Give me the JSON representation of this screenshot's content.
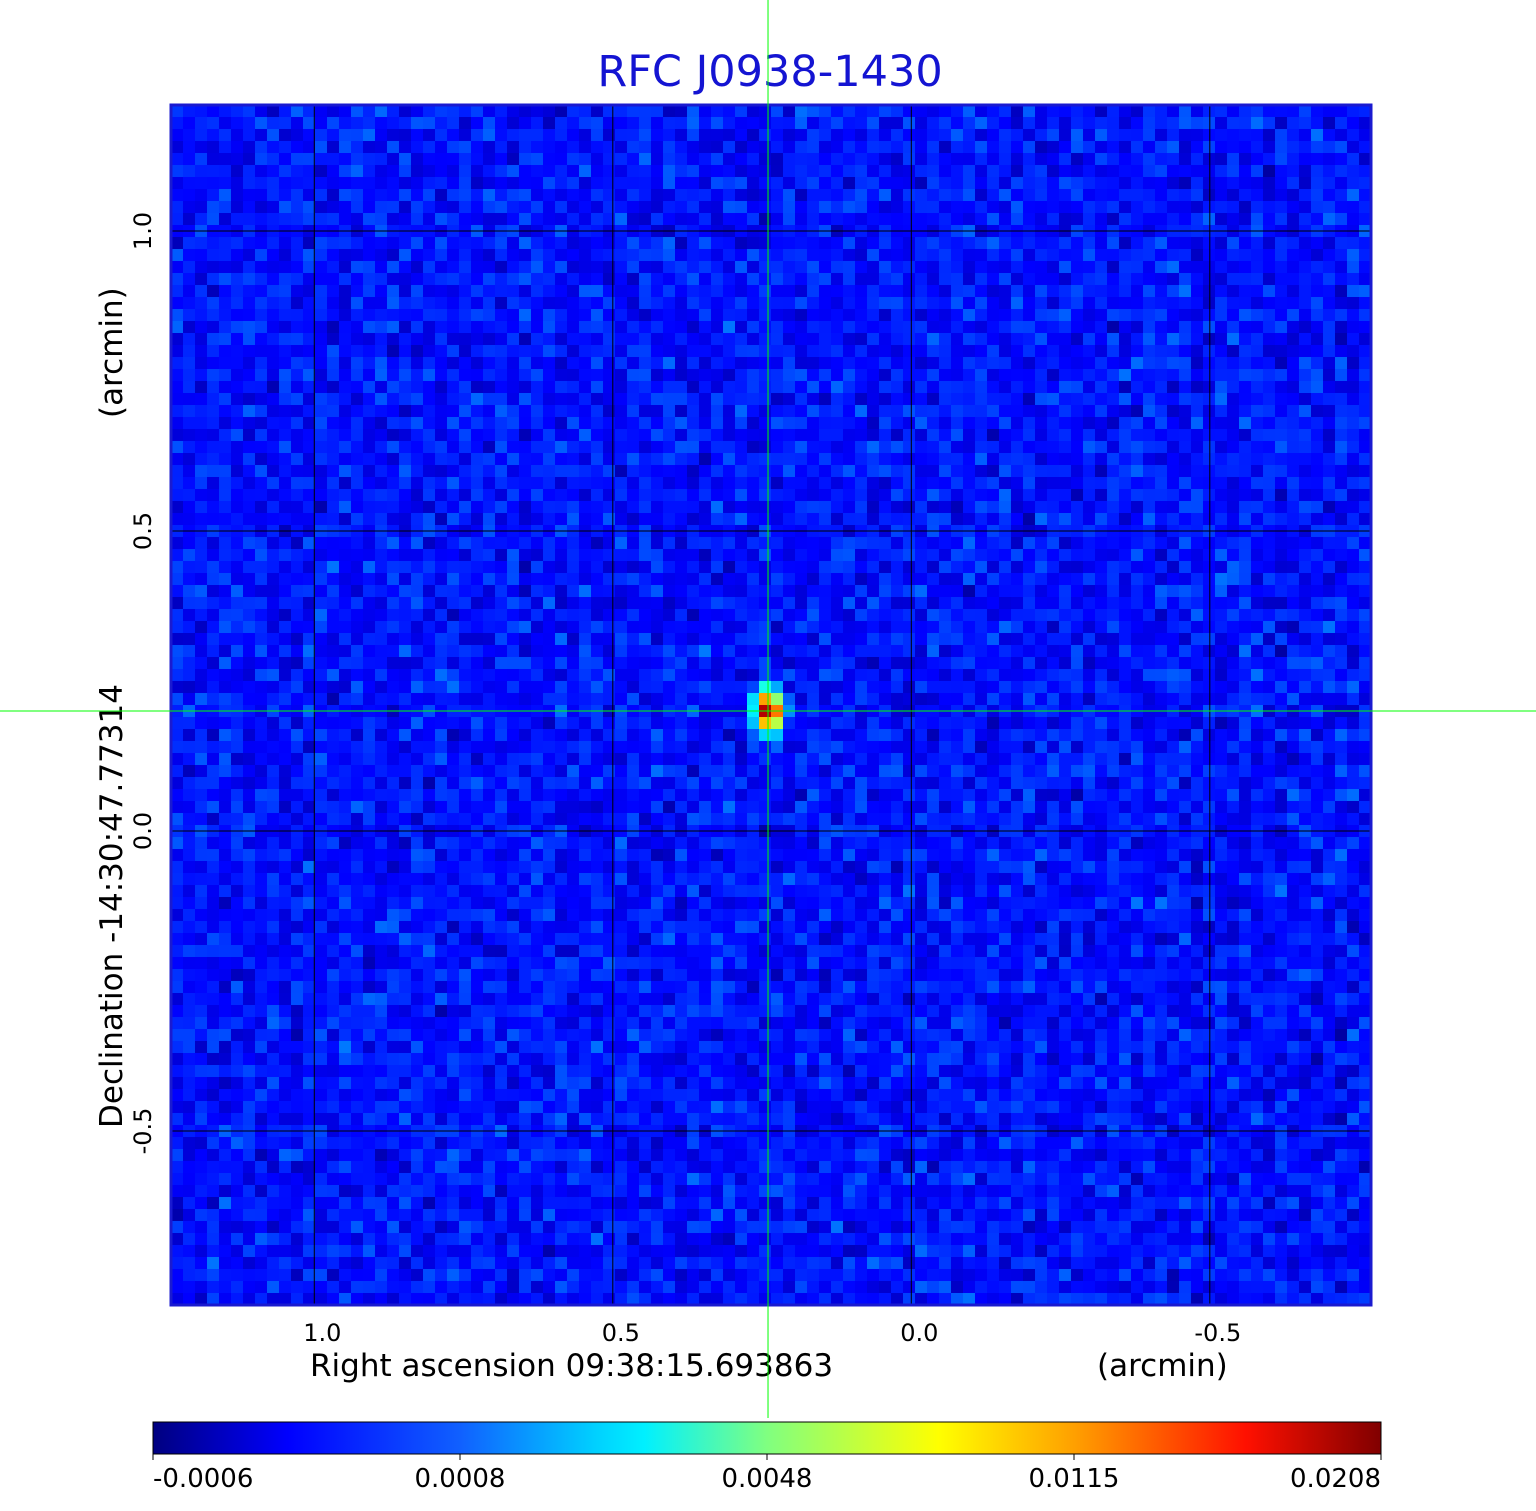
{
  "chart_data": {
    "type": "heatmap",
    "title": "RFC J0938-1430",
    "xlabel": "Right ascension  09:38:15.693863",
    "xunit": "(arcmin)",
    "ylabel": "Declination  -14:30:47.77314",
    "yunit": "(arcmin)",
    "xlim": [
      1.24,
      -0.77
    ],
    "ylim": [
      -0.79,
      1.21
    ],
    "x_ticks": [
      {
        "value": 1.0,
        "label": "1.0"
      },
      {
        "value": 0.5,
        "label": "0.5"
      },
      {
        "value": 0.0,
        "label": "0.0"
      },
      {
        "value": -0.5,
        "label": "-0.5"
      }
    ],
    "y_ticks": [
      {
        "value": 1.0,
        "label": "1.0"
      },
      {
        "value": 0.5,
        "label": "0.5"
      },
      {
        "value": 0.0,
        "label": "0.0"
      },
      {
        "value": -0.5,
        "label": "-0.5"
      }
    ],
    "grid": true,
    "grid_color": "#000000",
    "crosshair": {
      "x": 0.24,
      "y": 0.2,
      "color": "#00ff00"
    },
    "source_peak": {
      "x": 0.24,
      "y": 0.2,
      "value": 0.0208
    },
    "colormap": "jet",
    "colorbar": {
      "position": "bottom",
      "ticks": [
        "-0.0006",
        "0.0008",
        "0.0048",
        "0.0115",
        "0.0208"
      ]
    },
    "colors": {
      "title": "#1414d2",
      "frame": "#1a1ad0",
      "background_low": "#1450f5",
      "background_high": "#28a0ff"
    }
  }
}
